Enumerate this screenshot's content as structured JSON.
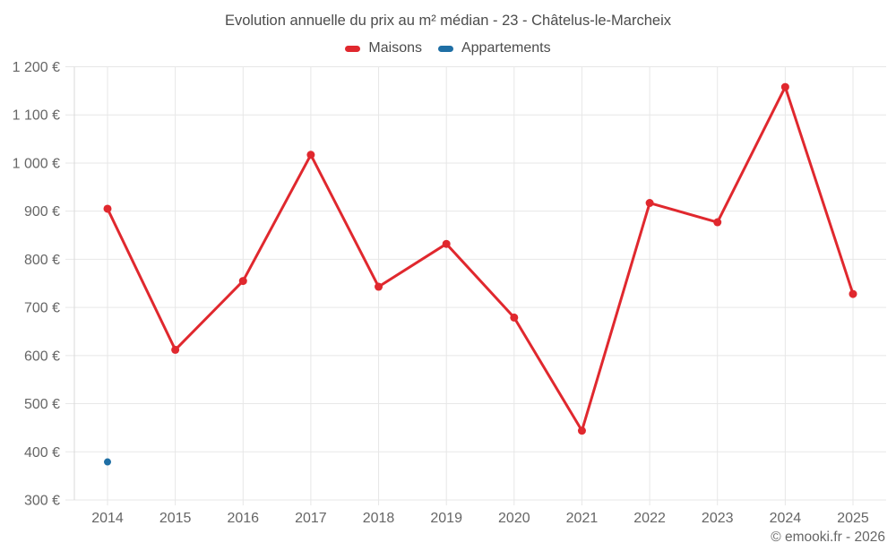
{
  "title": "Evolution annuelle du prix au m² médian - 23 - Châtelus-le-Marcheix",
  "legend": {
    "items": [
      {
        "label": "Maisons",
        "color": "#e0282e"
      },
      {
        "label": "Appartements",
        "color": "#1f6fa5"
      }
    ]
  },
  "footer": {
    "credit": "© emooki.fr - 2026"
  },
  "chart_data": {
    "type": "line",
    "title": "Evolution annuelle du prix au m² médian - 23 - Châtelus-le-Marcheix",
    "x": [
      "2014",
      "2015",
      "2016",
      "2017",
      "2018",
      "2019",
      "2020",
      "2021",
      "2022",
      "2023",
      "2024",
      "2025"
    ],
    "series": [
      {
        "name": "Maisons",
        "color": "#e0282e",
        "marker": "circle",
        "marker_radius": 4.5,
        "line_width": 3,
        "values": [
          905,
          612,
          755,
          1017,
          743,
          832,
          679,
          444,
          917,
          877,
          1158,
          728
        ]
      },
      {
        "name": "Appartements",
        "color": "#1f6fa5",
        "marker": "circle",
        "marker_radius": 4,
        "line_width": 3,
        "values": [
          379,
          null,
          null,
          null,
          null,
          null,
          null,
          null,
          null,
          null,
          null,
          null
        ]
      }
    ],
    "ylim": [
      300,
      1200
    ],
    "ytick_step": 100,
    "ytick_suffix": " €",
    "xlabel": "",
    "ylabel": "",
    "grid": true,
    "legend_position": "top",
    "colors": {
      "grid": "#e7e7e7",
      "axis_line": "#d9d9d9",
      "tick_label": "#666666",
      "title_text": "#4c4c4c"
    }
  }
}
